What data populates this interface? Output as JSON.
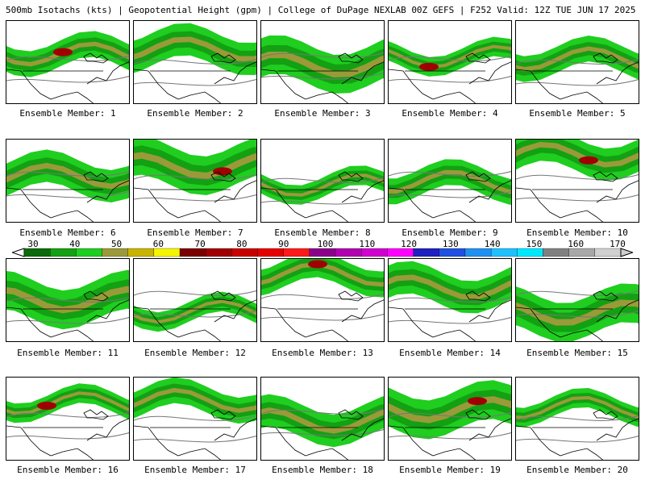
{
  "header": {
    "title": "500mb Isotachs (kts) | Geopotential Height (gpm) | College of DuPage NEXLAB  00Z GEFS | F252 Valid: 12Z TUE JUN 17 2025"
  },
  "panels": [
    {
      "label": "Ensemble Member: 1"
    },
    {
      "label": "Ensemble Member: 2"
    },
    {
      "label": "Ensemble Member: 3"
    },
    {
      "label": "Ensemble Member: 4"
    },
    {
      "label": "Ensemble Member: 5"
    },
    {
      "label": "Ensemble Member: 6"
    },
    {
      "label": "Ensemble Member: 7"
    },
    {
      "label": "Ensemble Member: 8"
    },
    {
      "label": "Ensemble Member: 9"
    },
    {
      "label": "Ensemble Member: 10"
    },
    {
      "label": "Ensemble Member: 11"
    },
    {
      "label": "Ensemble Member: 12"
    },
    {
      "label": "Ensemble Member: 13"
    },
    {
      "label": "Ensemble Member: 14"
    },
    {
      "label": "Ensemble Member: 15"
    },
    {
      "label": "Ensemble Member: 16"
    },
    {
      "label": "Ensemble Member: 17"
    },
    {
      "label": "Ensemble Member: 18"
    },
    {
      "label": "Ensemble Member: 19"
    },
    {
      "label": "Ensemble Member: 20"
    }
  ],
  "colorbar": {
    "ticks": [
      "30",
      "40",
      "50",
      "60",
      "70",
      "80",
      "90",
      "100",
      "110",
      "120",
      "130",
      "140",
      "150",
      "160",
      "170"
    ],
    "colors": [
      "#0b6a0b",
      "#13a013",
      "#1fce1f",
      "#9a9a3a",
      "#c9b400",
      "#f5f500",
      "#7a0000",
      "#a00000",
      "#c80000",
      "#e60000",
      "#ff1a1a",
      "#8b008b",
      "#b000b0",
      "#d000d0",
      "#ff00ff",
      "#2020c0",
      "#2050e0",
      "#2090f0",
      "#20c0ff",
      "#00e8ff",
      "#808080",
      "#a8a8a8",
      "#d0d0d0"
    ]
  }
}
